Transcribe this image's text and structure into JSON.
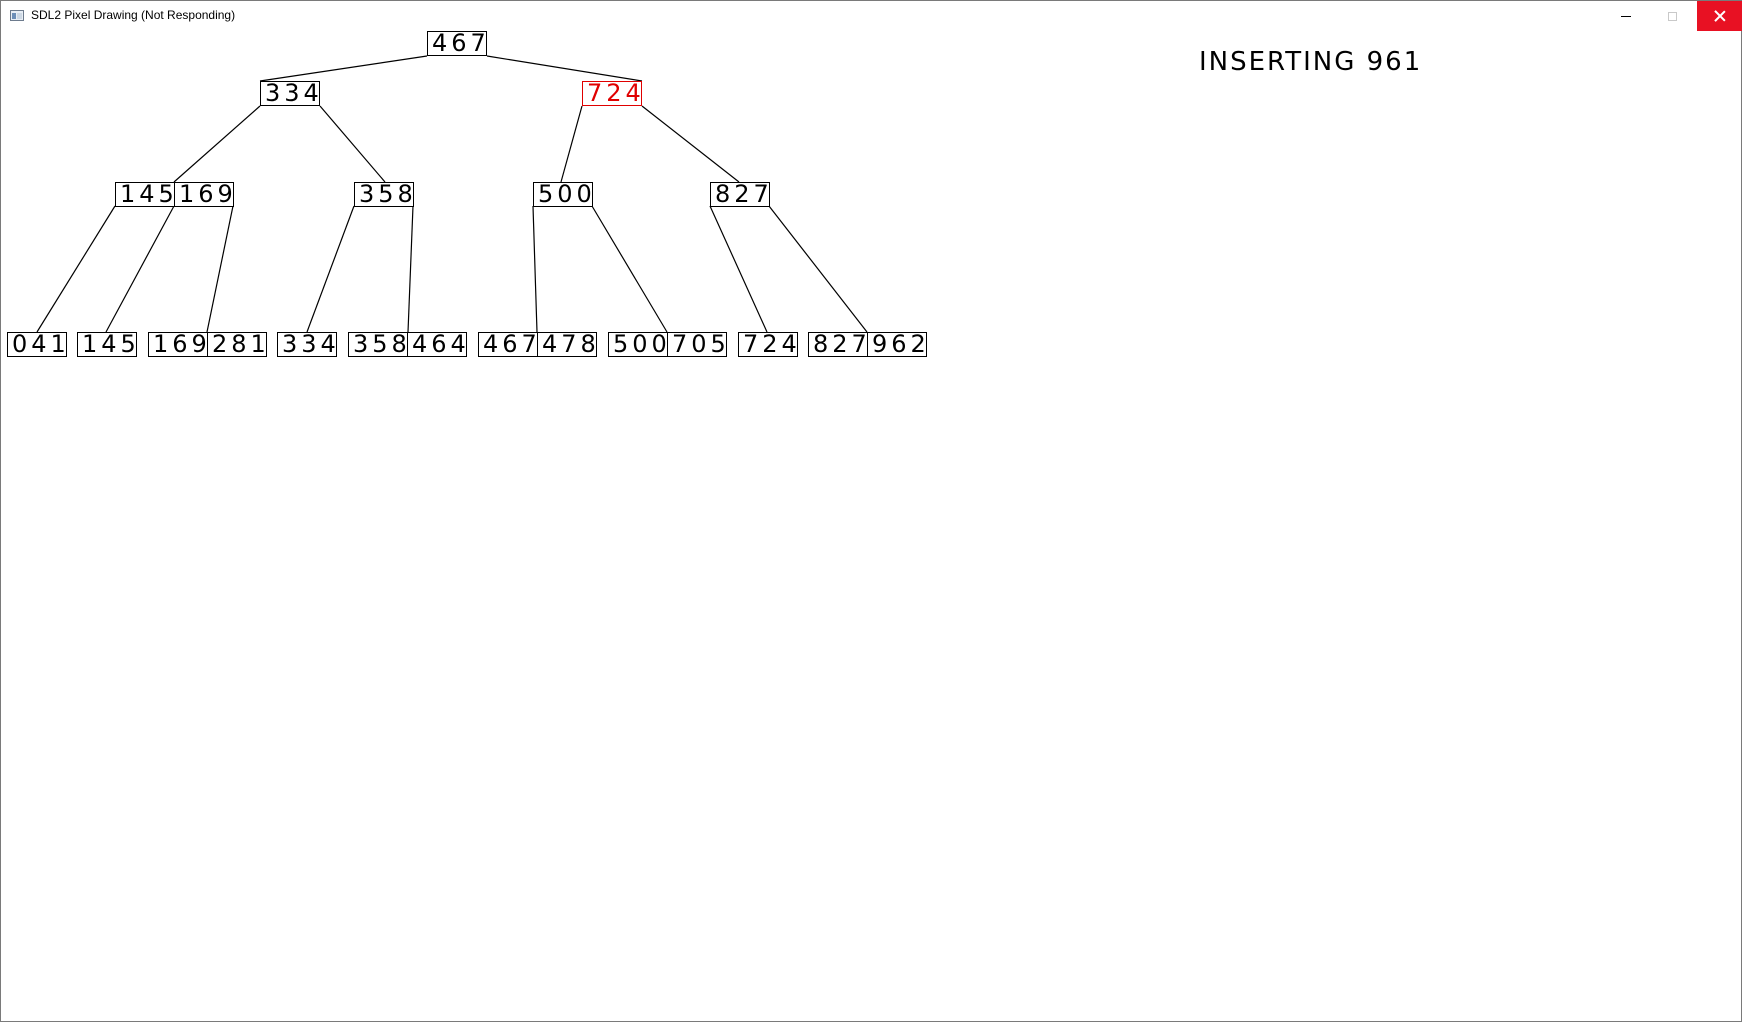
{
  "window": {
    "title": "SDL2 Pixel Drawing (Not Responding)",
    "controls": {
      "minimize": "minimize-icon",
      "maximize": "maximize-icon",
      "close": "close-icon"
    },
    "close_hover_color": "#e81123"
  },
  "status_text": "INSERTING 961",
  "highlight_color": "#e00000",
  "tree": {
    "root": {
      "keys": [
        "467"
      ]
    },
    "level1": [
      {
        "keys": [
          "334"
        ],
        "highlighted": false
      },
      {
        "keys": [
          "724"
        ],
        "highlighted": true
      }
    ],
    "level2": [
      {
        "keys": [
          "145",
          "169"
        ]
      },
      {
        "keys": [
          "358"
        ]
      },
      {
        "keys": [
          "500"
        ]
      },
      {
        "keys": [
          "827"
        ]
      }
    ],
    "leaves": [
      {
        "keys": [
          "041"
        ]
      },
      {
        "keys": [
          "145"
        ]
      },
      {
        "keys": [
          "169",
          "281"
        ]
      },
      {
        "keys": [
          "334"
        ]
      },
      {
        "keys": [
          "358",
          "464"
        ]
      },
      {
        "keys": [
          "467",
          "478"
        ]
      },
      {
        "keys": [
          "500",
          "705"
        ]
      },
      {
        "keys": [
          "724"
        ]
      },
      {
        "keys": [
          "827",
          "962"
        ]
      }
    ]
  }
}
